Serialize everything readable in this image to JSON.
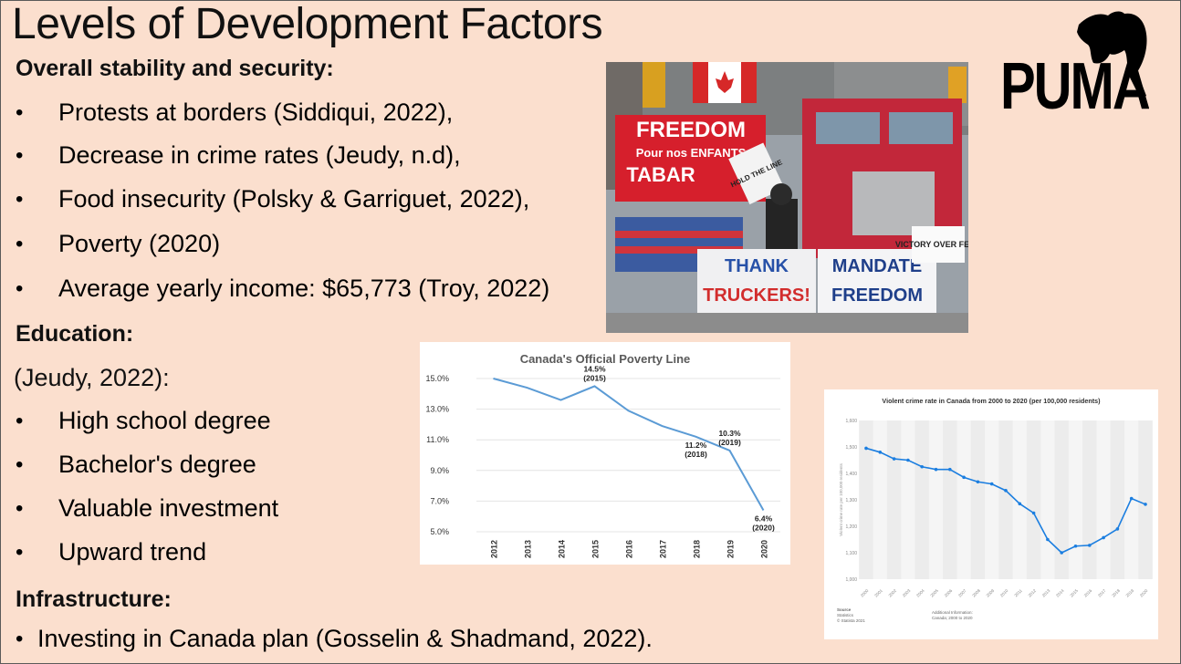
{
  "slide": {
    "title": "Levels of Development Factors",
    "sections": {
      "stability": {
        "heading": "Overall stability and security:",
        "bullets": [
          "Protests at borders (Siddiqui, 2022),",
          "Decrease in crime rates (Jeudy, n.d),",
          "Food insecurity (Polsky & Garriguet, 2022),",
          "Poverty (2020)",
          "Average yearly income: $65,773 (Troy, 2022)"
        ]
      },
      "education": {
        "heading": "Education:",
        "citation": "(Jeudy, 2022):",
        "bullets": [
          "High school degree",
          "Bachelor's degree",
          "Valuable investment",
          "Upward trend"
        ]
      },
      "infrastructure": {
        "heading": "Infrastructure:",
        "bullets": [
          "Investing in Canada plan (Gosselin & Shadmand, 2022)."
        ]
      }
    },
    "bullet_glyph": "•",
    "logo_text": "PUMA",
    "photo": {
      "signs": [
        "FREEDOM",
        "Pour nos ENFANTS",
        "TABAR",
        "HOLD THE LINE",
        "THANK",
        "TRUCKERS!",
        "MANDATE",
        "FREEDOM",
        "VICTORY OVER FEAR"
      ]
    }
  },
  "chart_data": [
    {
      "type": "line",
      "title": "Canada's Official Poverty Line",
      "categories": [
        "2012",
        "2013",
        "2014",
        "2015",
        "2016",
        "2017",
        "2018",
        "2019",
        "2020"
      ],
      "values": [
        15.0,
        14.4,
        13.6,
        14.5,
        12.9,
        11.9,
        11.2,
        10.3,
        6.4
      ],
      "y_ticks": [
        "15.0%",
        "13.0%",
        "11.0%",
        "9.0%",
        "7.0%",
        "5.0%"
      ],
      "ylim": [
        5.0,
        15.0
      ],
      "annotations": [
        {
          "index": 3,
          "line1": "14.5%",
          "line2": "(2015)"
        },
        {
          "index": 6,
          "line1": "11.2%",
          "line2": "(2018)"
        },
        {
          "index": 7,
          "line1": "10.3%",
          "line2": "(2019)"
        },
        {
          "index": 8,
          "line1": "6.4%",
          "line2": "(2020)"
        }
      ],
      "color": "#5b9bd5"
    },
    {
      "type": "line",
      "title": "Violent crime rate in Canada from 2000 to 2020 (per 100,000 residents)",
      "categories": [
        "2000",
        "2001",
        "2002",
        "2003",
        "2004",
        "2005",
        "2006",
        "2007",
        "2008",
        "2009",
        "2010",
        "2011",
        "2012",
        "2013",
        "2014",
        "2015",
        "2016",
        "2017",
        "2018",
        "2019",
        "2020"
      ],
      "values": [
        1495,
        1480,
        1455,
        1450,
        1425,
        1415,
        1415,
        1385,
        1368,
        1360,
        1335,
        1285,
        1250,
        1150,
        1100,
        1125,
        1128,
        1157,
        1190,
        1305,
        1283
      ],
      "y_ticks": [
        "1,600",
        "1,500",
        "1,400",
        "1,300",
        "1,200",
        "1,100",
        "1,000"
      ],
      "ylim": [
        1000,
        1600
      ],
      "ylabel": "Violent crime rate per 100,000 residents",
      "footer_left": [
        "Source",
        "Statistics",
        "© Statista 2021"
      ],
      "footer_right": [
        "Additional Information:",
        "Canada; 2000 to 2020"
      ],
      "color": "#1b7ee0"
    }
  ]
}
